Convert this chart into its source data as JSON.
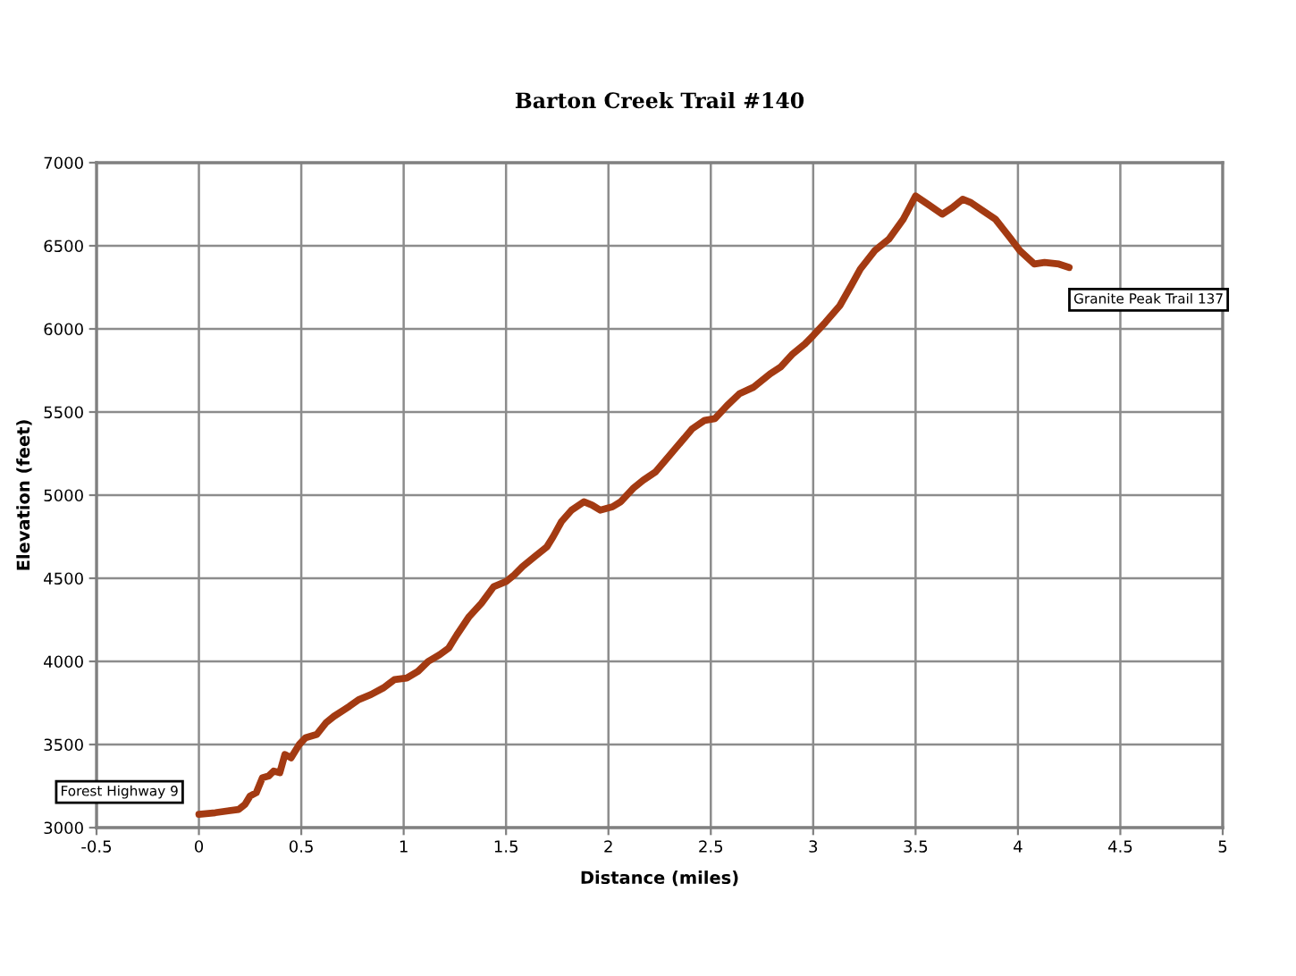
{
  "chart_data": {
    "type": "line",
    "title": "Barton Creek Trail #140",
    "xlabel": "Distance (miles)",
    "ylabel": "Elevation (feet)",
    "series": [
      {
        "color": "#a33a12",
        "x": [
          0,
          0.08,
          0.195,
          0.225,
          0.25,
          0.28,
          0.31,
          0.34,
          0.365,
          0.395,
          0.42,
          0.45,
          0.49,
          0.52,
          0.575,
          0.62,
          0.66,
          0.71,
          0.735,
          0.78,
          0.84,
          0.9,
          0.955,
          1.015,
          1.07,
          1.12,
          1.175,
          1.22,
          1.26,
          1.32,
          1.38,
          1.44,
          1.5,
          1.54,
          1.58,
          1.64,
          1.7,
          1.73,
          1.77,
          1.82,
          1.88,
          1.92,
          1.96,
          2.02,
          2.06,
          2.12,
          2.17,
          2.23,
          2.32,
          2.41,
          2.47,
          2.52,
          2.58,
          2.64,
          2.71,
          2.79,
          2.84,
          2.9,
          2.96,
          3.0,
          3.06,
          3.13,
          3.19,
          3.23,
          3.3,
          3.37,
          3.44,
          3.47,
          3.5,
          3.56,
          3.63,
          3.68,
          3.73,
          3.77,
          3.83,
          3.89,
          3.96,
          4.01,
          4.08,
          4.13,
          4.2,
          4.25
        ],
        "values": [
          3080,
          3090,
          3110,
          3140,
          3190,
          3210,
          3300,
          3310,
          3340,
          3330,
          3440,
          3420,
          3500,
          3540,
          3560,
          3630,
          3670,
          3710,
          3730,
          3770,
          3800,
          3840,
          3890,
          3900,
          3940,
          4000,
          4040,
          4080,
          4160,
          4270,
          4350,
          4450,
          4480,
          4520,
          4570,
          4630,
          4690,
          4750,
          4840,
          4910,
          4960,
          4940,
          4910,
          4930,
          4960,
          5040,
          5090,
          5140,
          5270,
          5400,
          5450,
          5460,
          5540,
          5610,
          5650,
          5730,
          5770,
          5850,
          5910,
          5960,
          6040,
          6140,
          6270,
          6360,
          6470,
          6540,
          6660,
          6730,
          6800,
          6750,
          6690,
          6730,
          6780,
          6760,
          6710,
          6660,
          6550,
          6470,
          6390,
          6400,
          6390,
          6370
        ]
      }
    ],
    "xlim": [
      -0.5,
      5
    ],
    "ylim": [
      3000,
      7000
    ],
    "xticks": [
      -0.5,
      0,
      0.5,
      1,
      1.5,
      2,
      2.5,
      3,
      3.5,
      4,
      4.5,
      5
    ],
    "yticks": [
      3000,
      3500,
      4000,
      4500,
      5000,
      5500,
      6000,
      6500,
      7000
    ],
    "grid": true,
    "marker": "none",
    "line_style": "solid",
    "annotations": [
      {
        "text": "Forest Highway 9",
        "x": 0,
        "y": 3080
      },
      {
        "text": "Granite Peak Trail 137",
        "x": 4.25,
        "y": 6370
      }
    ]
  }
}
